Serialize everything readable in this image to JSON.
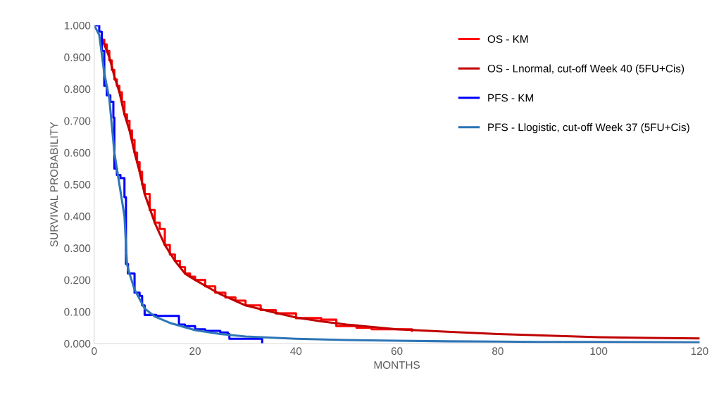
{
  "chart_data": {
    "type": "line",
    "xlabel": "MONTHS",
    "ylabel": "SURVIVAL PROBABILITY",
    "xlim": [
      0,
      120
    ],
    "xticks": [
      0,
      20,
      40,
      60,
      80,
      100,
      120
    ],
    "ylim": [
      0,
      1
    ],
    "yticks": [
      {
        "value": 0,
        "label": "0.000"
      },
      {
        "value": 0.1,
        "label": "0.100"
      },
      {
        "value": 0.2,
        "label": "0.200"
      },
      {
        "value": 0.3,
        "label": "0.300"
      },
      {
        "value": 0.4,
        "label": "0.400"
      },
      {
        "value": 0.5,
        "label": "0.500"
      },
      {
        "value": 0.6,
        "label": "0.600"
      },
      {
        "value": 0.7,
        "label": "0.700"
      },
      {
        "value": 0.8,
        "label": "0.800"
      },
      {
        "value": 0.9,
        "label": "0.900"
      },
      {
        "value": 1,
        "label": "1.000"
      }
    ],
    "grid": false,
    "legend": "top right",
    "series": [
      {
        "name": "OS - KM",
        "type": "step",
        "color": "#ff0000",
        "x": [
          1.5,
          2,
          2.5,
          3,
          3.5,
          4,
          4.5,
          5,
          5.5,
          6,
          6.5,
          7,
          7.5,
          8,
          8.5,
          9,
          9.5,
          10,
          11,
          12,
          13,
          14,
          15,
          16,
          17,
          18,
          19,
          20,
          22,
          24,
          26,
          28,
          30,
          33,
          36,
          40,
          45,
          48,
          52,
          55,
          60,
          63
        ],
        "values": [
          0.955,
          0.94,
          0.92,
          0.89,
          0.86,
          0.83,
          0.81,
          0.79,
          0.76,
          0.72,
          0.7,
          0.67,
          0.64,
          0.6,
          0.57,
          0.54,
          0.5,
          0.47,
          0.42,
          0.38,
          0.36,
          0.31,
          0.28,
          0.26,
          0.24,
          0.22,
          0.21,
          0.2,
          0.18,
          0.16,
          0.145,
          0.135,
          0.12,
          0.105,
          0.095,
          0.08,
          0.075,
          0.055,
          0.05,
          0.045,
          0.045,
          0.04
        ]
      },
      {
        "name": "OS - Lnormal, cut-off Week 40 (5FU+Cis)",
        "color": "#c00000",
        "x": [
          1.5,
          2,
          3,
          4,
          5,
          6,
          7,
          8,
          9,
          10,
          12,
          14,
          16,
          18,
          20,
          25,
          30,
          35,
          40,
          45,
          50,
          60,
          70,
          80,
          90,
          100,
          110,
          120
        ],
        "values": [
          0.955,
          0.94,
          0.9,
          0.84,
          0.79,
          0.72,
          0.67,
          0.6,
          0.54,
          0.47,
          0.38,
          0.31,
          0.26,
          0.22,
          0.2,
          0.155,
          0.12,
          0.1,
          0.082,
          0.07,
          0.06,
          0.045,
          0.037,
          0.03,
          0.025,
          0.02,
          0.018,
          0.016
        ]
      },
      {
        "name": "PFS - KM",
        "type": "step",
        "color": "#0000ff",
        "x": [
          0,
          1,
          1.5,
          2,
          2.5,
          3.2,
          3.8,
          4,
          4.5,
          5.2,
          6,
          6.3,
          6.7,
          7.5,
          8,
          9,
          9.5,
          10,
          12,
          12.3,
          16.5,
          16.8,
          18,
          20,
          22,
          25,
          26.5,
          26.8,
          33,
          33.3
        ],
        "values": [
          1,
          0.98,
          0.92,
          0.81,
          0.78,
          0.76,
          0.71,
          0.55,
          0.53,
          0.52,
          0.46,
          0.25,
          0.22,
          0.22,
          0.16,
          0.15,
          0.12,
          0.09,
          0.09,
          0.087,
          0.087,
          0.06,
          0.055,
          0.045,
          0.04,
          0.035,
          0.03,
          0.015,
          0.015,
          0
        ]
      },
      {
        "name": "PFS - Llogistic, cut-off Week 37 (5FU+Cis)",
        "color": "#2e75b6",
        "x": [
          0,
          1,
          2,
          3,
          4,
          5,
          6,
          6.5,
          7,
          8,
          10,
          12,
          15,
          20,
          25,
          30,
          40,
          50,
          60,
          70,
          80,
          90,
          100,
          120
        ],
        "values": [
          1,
          0.97,
          0.85,
          0.77,
          0.6,
          0.5,
          0.4,
          0.25,
          0.22,
          0.17,
          0.11,
          0.085,
          0.065,
          0.042,
          0.03,
          0.022,
          0.015,
          0.011,
          0.009,
          0.007,
          0.006,
          0.005,
          0.005,
          0.004
        ]
      }
    ]
  }
}
